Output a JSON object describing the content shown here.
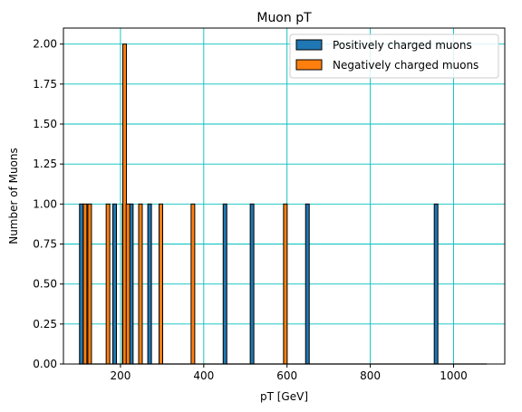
{
  "chart_data": {
    "type": "bar",
    "title": "Muon pT",
    "xlabel": "pT [GeV]",
    "ylabel": "Number of Muons",
    "xlim": [
      63,
      1123
    ],
    "ylim": [
      0,
      2.1
    ],
    "x_ticks": [
      200,
      400,
      600,
      800,
      1000
    ],
    "y_ticks": [
      0.0,
      0.25,
      0.5,
      0.75,
      1.0,
      1.25,
      1.5,
      1.75,
      2.0
    ],
    "x_tick_labels": [
      "200",
      "400",
      "600",
      "800",
      "1000"
    ],
    "y_tick_labels": [
      "0.00",
      "0.25",
      "0.50",
      "0.75",
      "1.00",
      "1.25",
      "1.50",
      "1.75",
      "2.00"
    ],
    "grid": true,
    "grid_color": "#00bfbf",
    "legend_position": "top-right",
    "bar_width": 4,
    "series": [
      {
        "name": "Positively charged muons",
        "color": "#1f77b4",
        "bars": [
          {
            "x": 106,
            "value": 1
          },
          {
            "x": 186,
            "value": 1
          },
          {
            "x": 209,
            "value": 1
          },
          {
            "x": 226,
            "value": 1
          },
          {
            "x": 270,
            "value": 1
          },
          {
            "x": 451,
            "value": 1
          },
          {
            "x": 516,
            "value": 1
          },
          {
            "x": 649,
            "value": 1
          },
          {
            "x": 958,
            "value": 1
          }
        ]
      },
      {
        "name": "Negatively charged muons",
        "color": "#ff7f0e",
        "bars": [
          {
            "x": 115,
            "value": 1
          },
          {
            "x": 126,
            "value": 1
          },
          {
            "x": 170,
            "value": 1
          },
          {
            "x": 210,
            "value": 2
          },
          {
            "x": 218,
            "value": 1
          },
          {
            "x": 248,
            "value": 1
          },
          {
            "x": 297,
            "value": 1
          },
          {
            "x": 374,
            "value": 1
          },
          {
            "x": 596,
            "value": 1
          }
        ]
      }
    ]
  }
}
